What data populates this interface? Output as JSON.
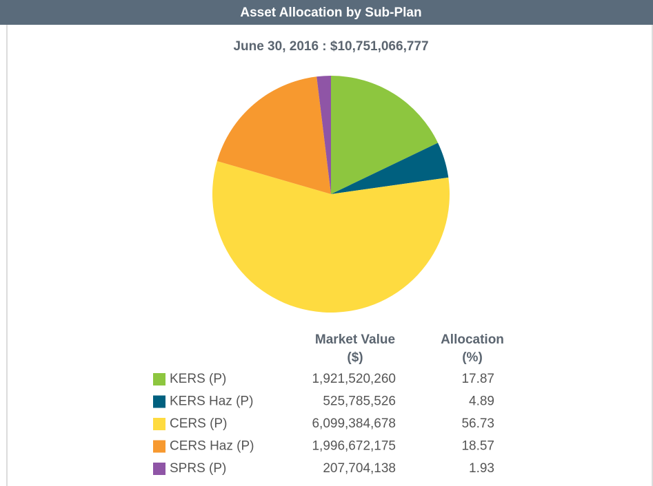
{
  "chart_data": {
    "type": "pie",
    "title": "Asset Allocation by Sub-Plan",
    "subtitle": "June 30, 2016 : $10,751,066,777",
    "categories": [
      "KERS (P)",
      "KERS Haz (P)",
      "CERS (P)",
      "CERS Haz (P)",
      "SPRS (P)"
    ],
    "values": [
      17.87,
      4.89,
      56.73,
      18.57,
      1.93
    ],
    "colors": [
      "#8dc63f",
      "#00607f",
      "#fedb40",
      "#f7992f",
      "#8f55a6"
    ],
    "columns": [
      [
        "Market Value",
        "($)"
      ],
      [
        "Allocation",
        "(%)"
      ]
    ],
    "market_values": [
      "1,921,520,260",
      "525,785,526",
      "6,099,384,678",
      "1,996,672,175",
      "207,704,138"
    ]
  }
}
